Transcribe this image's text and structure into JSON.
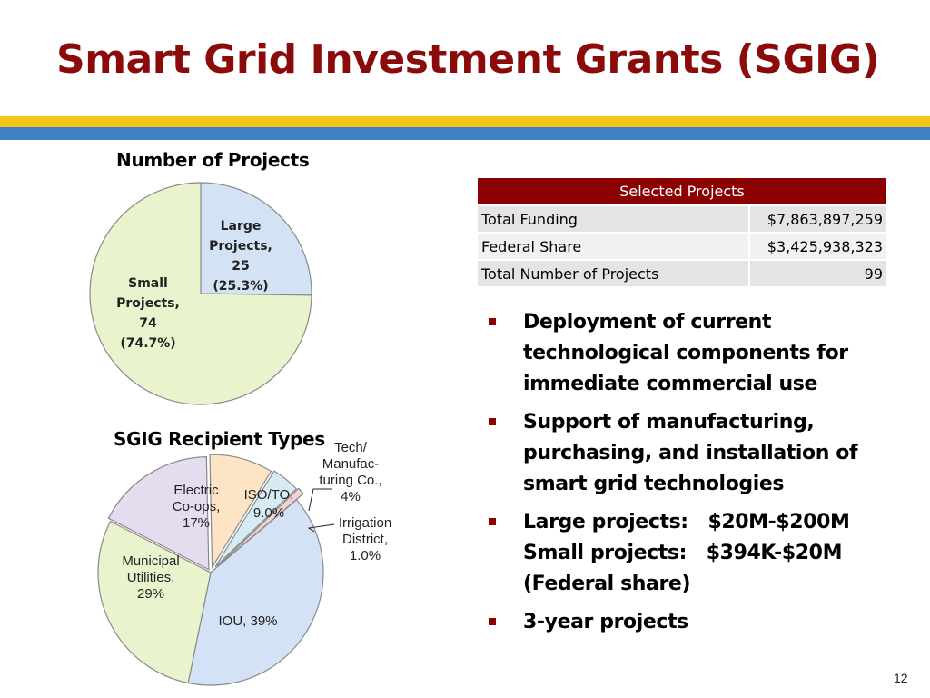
{
  "title": "Smart Grid Investment Grants (SGIG)",
  "colors": {
    "title": "#8b0b0b",
    "stripe_gold": "#f5c518",
    "stripe_blue": "#3f7fc2",
    "table_header": "#8b0000",
    "bullet_square": "#8b0000"
  },
  "chart_data": [
    {
      "type": "pie",
      "title": "Number of Projects",
      "slices": [
        {
          "name": "Large Projects,",
          "value": 25,
          "percent": 25.3,
          "color": "#d3e3f5",
          "label_lines": [
            "Large",
            "Projects,",
            "25",
            "(25.3%)"
          ]
        },
        {
          "name": "Small Projects,",
          "value": 74,
          "percent": 74.7,
          "color": "#e9f4cf",
          "label_lines": [
            "Small",
            "Projects,",
            "74",
            "(74.7%)"
          ]
        }
      ]
    },
    {
      "type": "pie",
      "title": "SGIG Recipient Types",
      "slices": [
        {
          "name": "Electric Co-ops",
          "percent": 17,
          "color": "#e5dcf0",
          "label_lines": [
            "Electric",
            "Co-ops,",
            "17%"
          ]
        },
        {
          "name": "ISO/TO",
          "percent": 9.0,
          "color": "#fde4c4",
          "label_lines": [
            "ISO/TO,",
            "9.0%"
          ]
        },
        {
          "name": "Tech/Manufacturing Co.",
          "percent": 4,
          "color": "#d6ebf4",
          "label_lines": [
            "Tech/",
            "Manufac-",
            "turing Co.,",
            "4%"
          ]
        },
        {
          "name": "Irrigation District",
          "percent": 1.0,
          "color": "#f2d2d2",
          "label_lines": [
            "Irrigation",
            "District,",
            "1.0%"
          ]
        },
        {
          "name": "IOU",
          "percent": 39,
          "color": "#d3e3f5",
          "label_lines": [
            "IOU, 39%"
          ]
        },
        {
          "name": "Municipal Utilities",
          "percent": 29,
          "color": "#e9f4cf",
          "label_lines": [
            "Municipal",
            "Utilities,",
            "29%"
          ]
        }
      ]
    }
  ],
  "table": {
    "header": "Selected Projects",
    "rows": [
      {
        "label": "Total Funding",
        "value": "$7,863,897,259"
      },
      {
        "label": "Federal Share",
        "value": "$3,425,938,323"
      },
      {
        "label": "Total Number of Projects",
        "value": "99"
      }
    ]
  },
  "bullets": [
    {
      "lines": [
        "Deployment of current",
        "technological components for",
        "immediate commercial use"
      ]
    },
    {
      "lines": [
        "Support of manufacturing,",
        "purchasing, and installation of",
        "smart grid technologies"
      ]
    },
    {
      "lines": [
        "Large projects:   $20M-$200M",
        "Small projects:   $394K-$20M",
        "(Federal share)"
      ]
    },
    {
      "lines": [
        "3-year projects"
      ]
    }
  ],
  "page_number": "12"
}
